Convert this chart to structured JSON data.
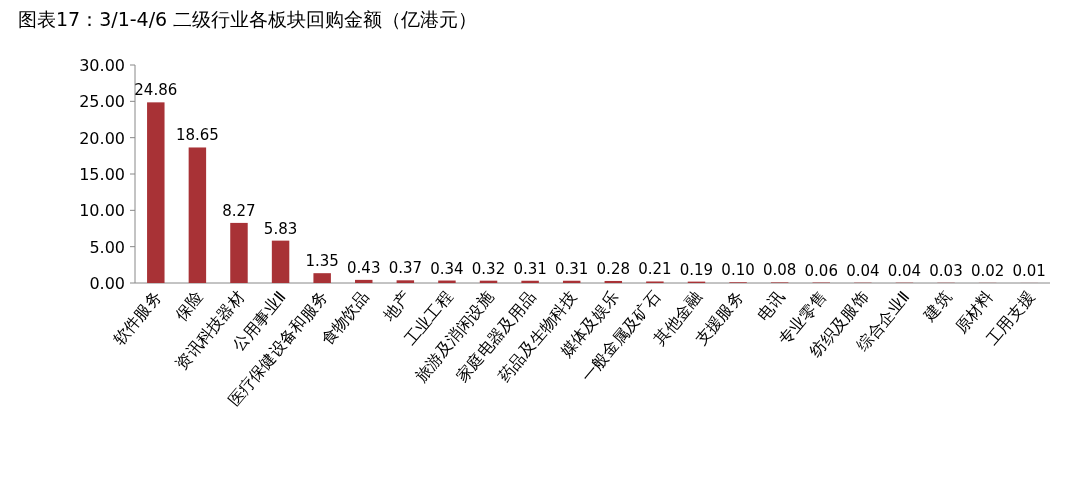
{
  "chart_data": {
    "type": "bar",
    "title": "图表17：3/1-4/6 二级行业各板块回购金额（亿港元）",
    "categories": [
      "软件服务",
      "保险",
      "资讯科技器材",
      "公用事业Ⅱ",
      "医疗保健设备和服务",
      "食物饮品",
      "地产",
      "工业工程",
      "旅游及消闲设施",
      "家庭电器及用品",
      "药品及生物科技",
      "媒体及娱乐",
      "一般金属及矿石",
      "其他金融",
      "支援服务",
      "电讯",
      "专业零售",
      "纺织及服饰",
      "综合企业Ⅱ",
      "建筑",
      "原材料",
      "工用支援"
    ],
    "values": [
      24.86,
      18.65,
      8.27,
      5.83,
      1.35,
      0.43,
      0.37,
      0.34,
      0.32,
      0.31,
      0.31,
      0.28,
      0.21,
      0.19,
      0.1,
      0.08,
      0.06,
      0.04,
      0.04,
      0.03,
      0.02,
      0.01
    ],
    "value_labels": [
      "24.86",
      "18.65",
      "8.27",
      "5.83",
      "1.35",
      "0.43",
      "0.37",
      "0.34",
      "0.32",
      "0.31",
      "0.31",
      "0.28",
      "0.21",
      "0.19",
      "0.10",
      "0.08",
      "0.06",
      "0.04",
      "0.04",
      "0.03",
      "0.02",
      "0.01"
    ],
    "color": "#a83236",
    "grid": false,
    "ylim": [
      0,
      30
    ],
    "yticks": [
      {
        "value": 0,
        "label": "0.00"
      },
      {
        "value": 5,
        "label": "5.00"
      },
      {
        "value": 10,
        "label": "10.00"
      },
      {
        "value": 15,
        "label": "15.00"
      },
      {
        "value": 20,
        "label": "20.00"
      },
      {
        "value": 25,
        "label": "25.00"
      },
      {
        "value": 30,
        "label": "30.00"
      }
    ]
  }
}
